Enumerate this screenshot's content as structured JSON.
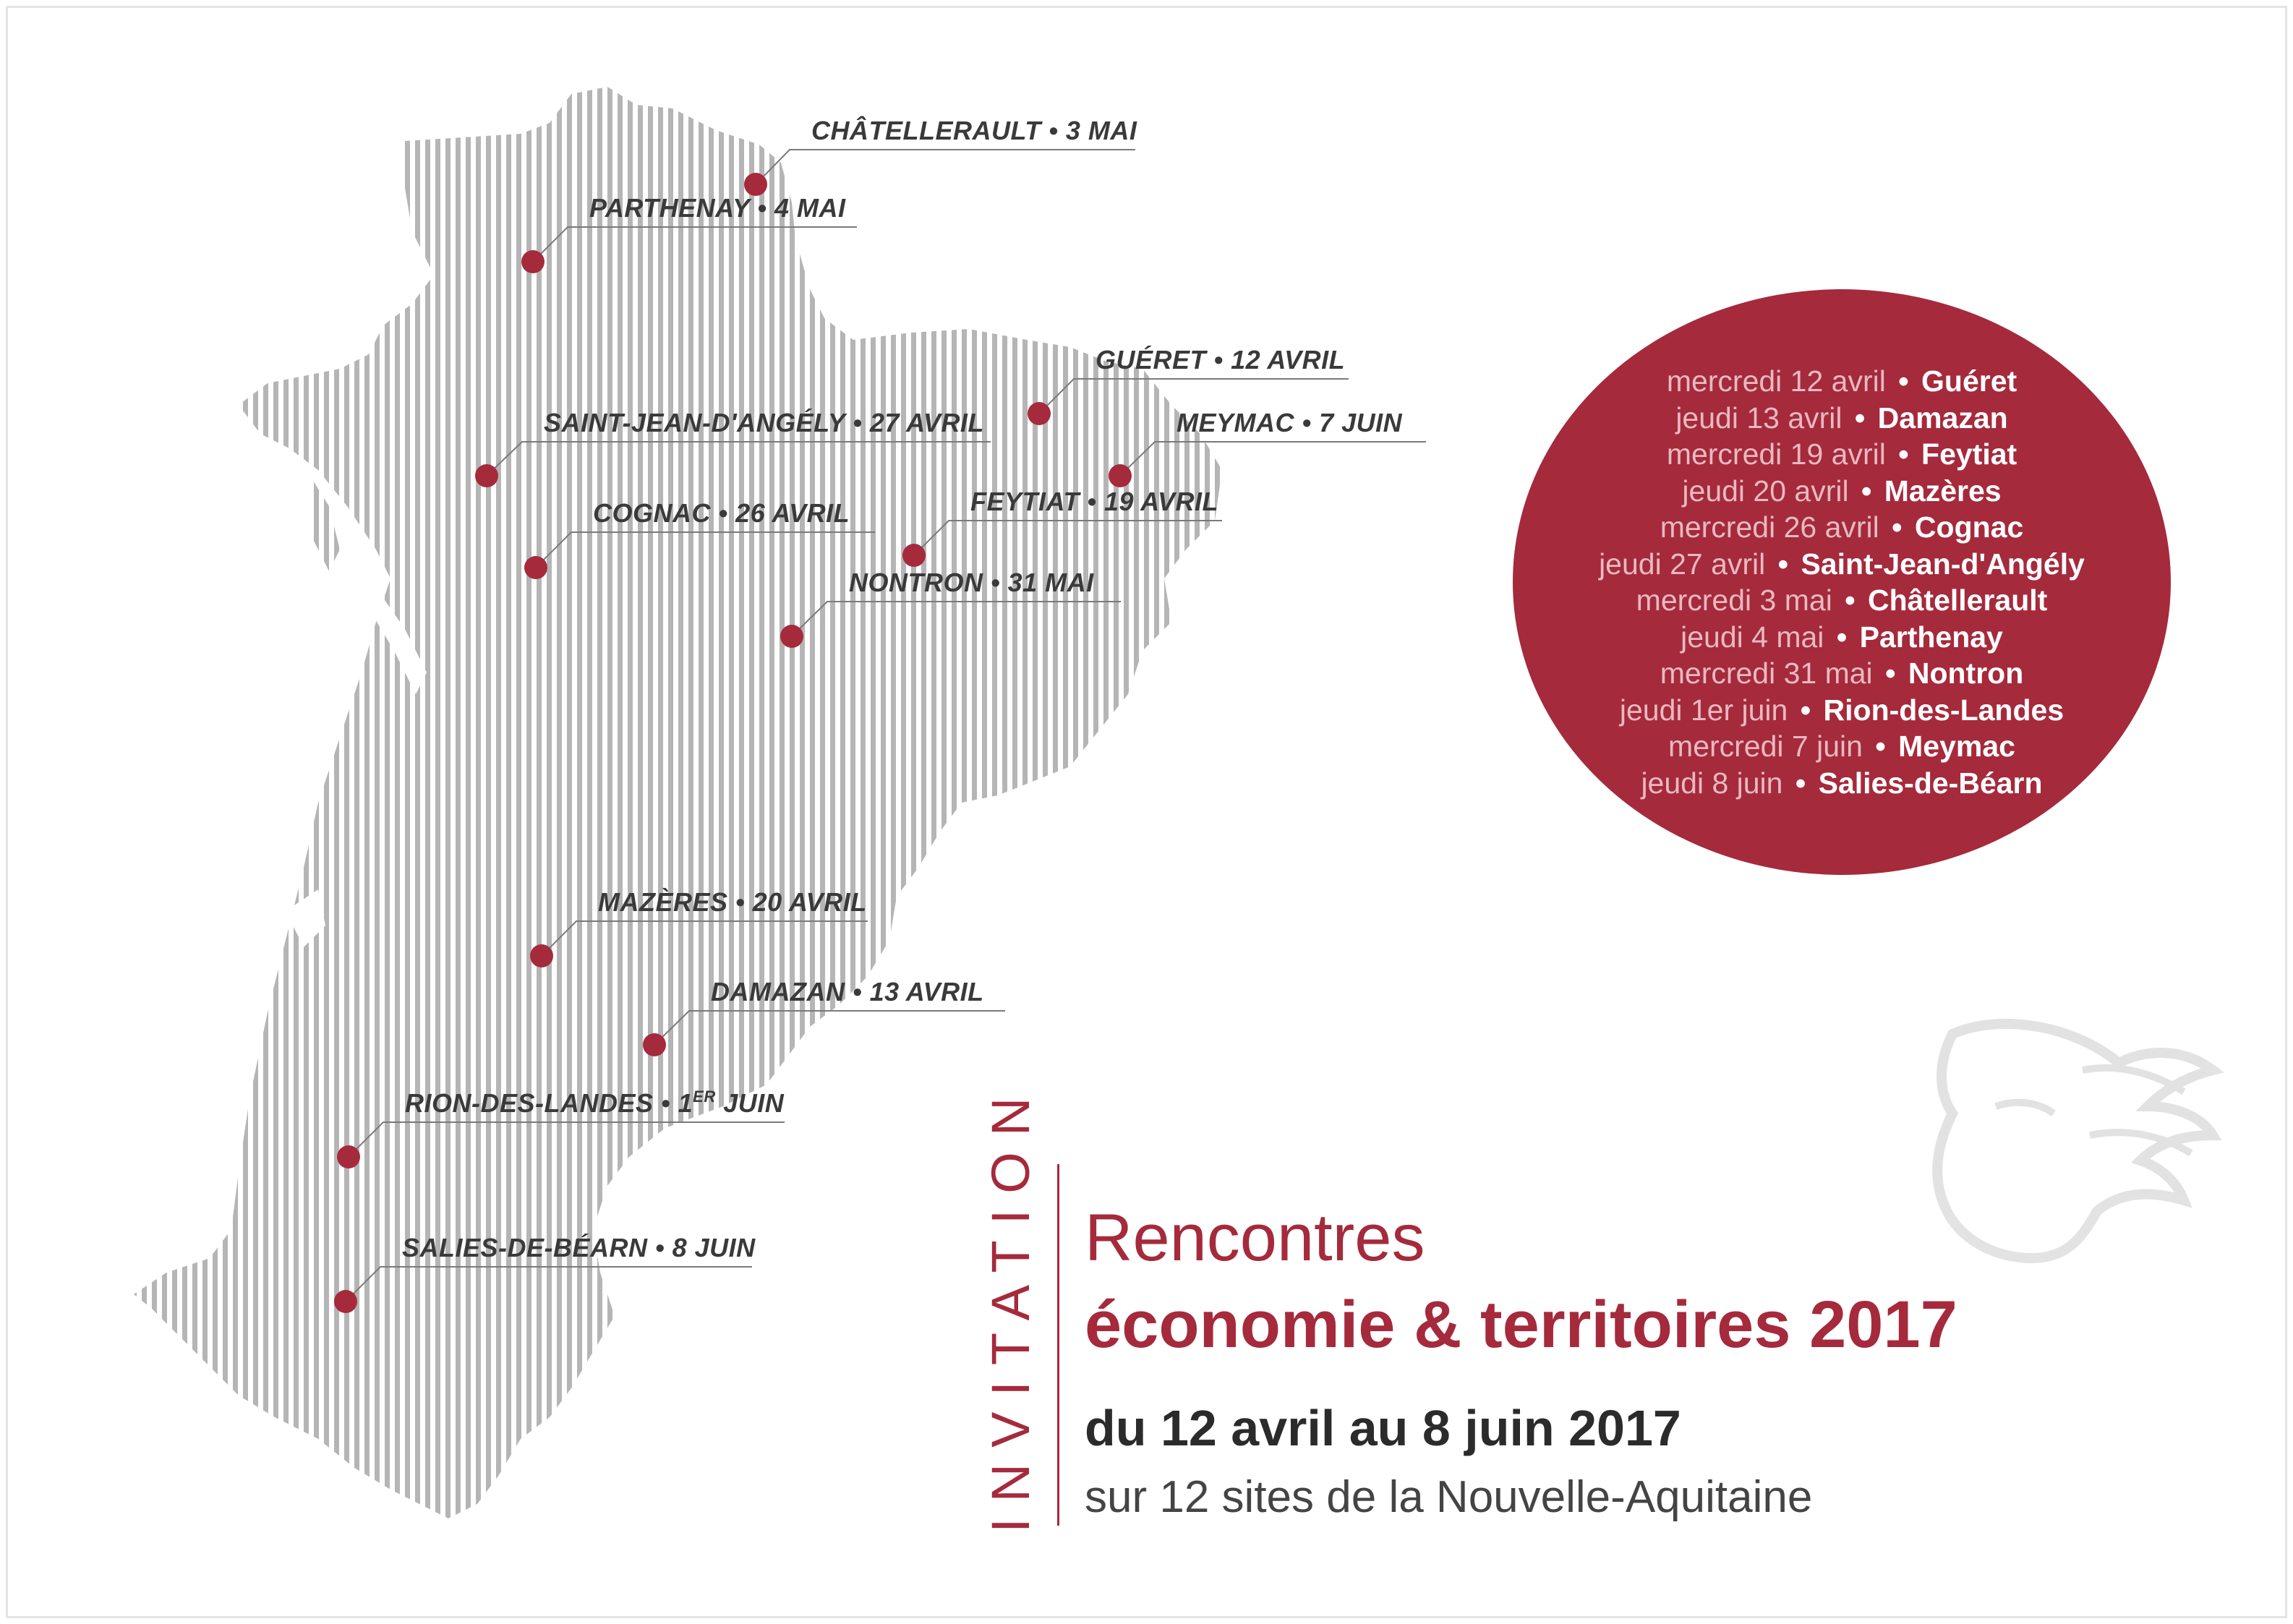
{
  "map_sites": [
    {
      "id": "chatellerault",
      "name": "CHÂTELLERAULT",
      "date": "3 MAI",
      "sup": ""
    },
    {
      "id": "parthenay",
      "name": "PARTHENAY",
      "date": "4 MAI",
      "sup": ""
    },
    {
      "id": "gueret",
      "name": "GUÉRET",
      "date": "12 AVRIL",
      "sup": ""
    },
    {
      "id": "meymac",
      "name": "MEYMAC",
      "date": "7 JUIN",
      "sup": ""
    },
    {
      "id": "saint-jean-dangely",
      "name": "SAINT-JEAN-D'ANGÉLY",
      "date": "27 AVRIL",
      "sup": ""
    },
    {
      "id": "cognac",
      "name": "COGNAC",
      "date": "26 AVRIL",
      "sup": ""
    },
    {
      "id": "feytiat",
      "name": "FEYTIAT",
      "date": "19 AVRIL",
      "sup": ""
    },
    {
      "id": "nontron",
      "name": "NONTRON",
      "date": "31 MAI",
      "sup": ""
    },
    {
      "id": "mazeres",
      "name": "MAZÈRES",
      "date": "20 AVRIL",
      "sup": ""
    },
    {
      "id": "damazan",
      "name": "DAMAZAN",
      "date": "13 AVRIL",
      "sup": ""
    },
    {
      "id": "rion-des-landes",
      "name": "RION-DES-LANDES",
      "date": "1",
      "sup": "ER",
      "date_rest": " JUIN"
    },
    {
      "id": "salies-de-bearn",
      "name": "SALIES-DE-BÉARN",
      "date": "8 JUIN",
      "sup": ""
    }
  ],
  "separator": "•",
  "schedule": [
    {
      "date": "mercredi 12 avril",
      "city": "Guéret"
    },
    {
      "date": "jeudi 13 avril",
      "city": "Damazan"
    },
    {
      "date": "mercredi 19 avril",
      "city": "Feytiat"
    },
    {
      "date": "jeudi 20 avril",
      "city": "Mazères"
    },
    {
      "date": "mercredi 26 avril",
      "city": "Cognac"
    },
    {
      "date": "jeudi 27 avril",
      "city": "Saint-Jean-d'Angély"
    },
    {
      "date": "mercredi 3 mai",
      "city": "Châtellerault"
    },
    {
      "date": "jeudi 4 mai",
      "city": "Parthenay"
    },
    {
      "date": "mercredi 31 mai",
      "city": "Nontron"
    },
    {
      "date": "jeudi 1er juin",
      "city": "Rion-des-Landes"
    },
    {
      "date": "mercredi 7 juin",
      "city": "Meymac"
    },
    {
      "date": "jeudi 8 juin",
      "city": "Salies-de-Béarn"
    }
  ],
  "invitation": "INVITATION",
  "title": {
    "line1": "Rencontres",
    "line2": "économie & territoires 2017"
  },
  "dates": "du 12 avril au 8 juin 2017",
  "sites": "sur 12 sites de la Nouvelle-Aquitaine",
  "colors": {
    "accent": "#a52a3c",
    "map_stripe": "#b5b5b5",
    "text_dark": "#2b2b2b"
  },
  "icons": {
    "logo": "lion-head-logo-icon",
    "marker": "location-dot-icon"
  }
}
